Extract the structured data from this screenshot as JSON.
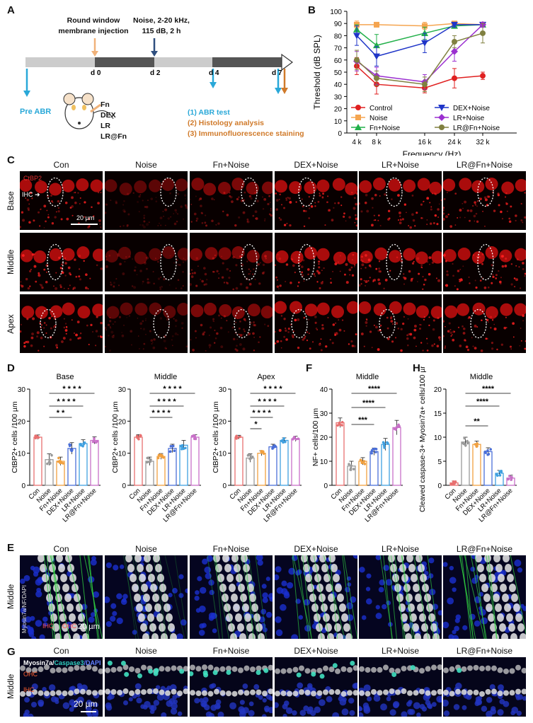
{
  "panel_labels": {
    "A": "A",
    "B": "B",
    "C": "C",
    "D": "D",
    "E": "E",
    "F": "F",
    "G": "G",
    "H": "H"
  },
  "panelA": {
    "injection": "Round window\nmembrane injection",
    "noise": "Noise, 2-20 kHz,\n115 dB, 2 h",
    "days": [
      "d 0",
      "d 2",
      "d 4",
      "d 7"
    ],
    "pre_abr": "Pre ABR",
    "treatments": [
      "Fn",
      "DEX",
      "LR",
      "LR@Fn"
    ],
    "steps": [
      "(1) ABR test",
      "(2) Histology analysis",
      "(3) Immunofluorescence staining"
    ],
    "colors": {
      "timeline_light": "#cccccc",
      "timeline_dark": "#555555",
      "abr_arrow": "#29a8d8",
      "histo_arrow": "#d07a2a",
      "injection_arrow": "#f0b27a",
      "noise_arrow": "#2f4f7f"
    }
  },
  "chart_data": [
    {
      "id": "B",
      "type": "line",
      "ylabel": "Threshold (dB SPL)",
      "xlabel": "Frequency (Hz)",
      "categories": [
        "4 k",
        "8 k",
        "16 k",
        "24 k",
        "32 k"
      ],
      "ylim": [
        0,
        100
      ],
      "yticks": [
        0,
        10,
        20,
        30,
        40,
        50,
        60,
        70,
        80,
        90,
        100
      ],
      "legend_position": "bottom",
      "series": [
        {
          "name": "Control",
          "color": "#e02020",
          "marker": "circle",
          "values": [
            55,
            40,
            37,
            45,
            47
          ],
          "err": [
            7,
            8,
            4,
            8,
            3
          ]
        },
        {
          "name": "Noise",
          "color": "#f5a550",
          "marker": "square",
          "values": [
            89,
            89,
            88,
            90,
            89
          ],
          "err": [
            3,
            2,
            3,
            1,
            2
          ]
        },
        {
          "name": "Fn+Noise",
          "color": "#22b04a",
          "marker": "triangle",
          "values": [
            85,
            72,
            82,
            88,
            89
          ],
          "err": [
            4,
            9,
            5,
            2,
            2
          ]
        },
        {
          "name": "DEX+Noise",
          "color": "#1f35c8",
          "marker": "triangle-down",
          "values": [
            80,
            63,
            74,
            89,
            89
          ],
          "err": [
            8,
            8,
            8,
            2,
            2
          ]
        },
        {
          "name": "LR+Noise",
          "color": "#9b30d0",
          "marker": "diamond",
          "values": [
            59,
            47,
            42,
            67,
            89
          ],
          "err": [
            8,
            7,
            6,
            8,
            2
          ]
        },
        {
          "name": "LR@Fn+Noise",
          "color": "#808040",
          "marker": "circle",
          "values": [
            60,
            45,
            40,
            75,
            82
          ],
          "err": [
            8,
            6,
            6,
            5,
            8
          ]
        }
      ]
    },
    {
      "id": "D-base",
      "type": "bar",
      "title": "Base",
      "ylabel": "CtBP2+ cells /100 µm",
      "categories": [
        "Con",
        "Noise",
        "Fn+Noise",
        "DEX+Noise",
        "LR+Noise",
        "LR@Fn+Noise"
      ],
      "values": [
        15,
        8,
        7.5,
        11.5,
        13,
        14
      ],
      "err": [
        0.7,
        1.8,
        1.3,
        1.8,
        1.2,
        1.1
      ],
      "ylim": [
        0,
        30
      ],
      "yticks": [
        0,
        10,
        20,
        30
      ],
      "significance": [
        "* *",
        "* * * *",
        "* * * *"
      ]
    },
    {
      "id": "D-middle",
      "type": "bar",
      "title": "Middle",
      "ylabel": "CtBP2+ cells /100 µm",
      "categories": [
        "Con",
        "Noise",
        "Fn+Noise",
        "DEX+Noise",
        "LR+Noise",
        "LR@Fn+Noise"
      ],
      "values": [
        15,
        7.5,
        9,
        11.5,
        12.5,
        15
      ],
      "err": [
        0.8,
        1.3,
        0.9,
        1.3,
        1.5,
        0.8
      ],
      "ylim": [
        0,
        30
      ],
      "yticks": [
        0,
        10,
        20,
        30
      ],
      "significance": [
        "* * * *",
        "* * * *",
        "* * * *"
      ]
    },
    {
      "id": "D-apex",
      "type": "bar",
      "title": "Apex",
      "ylabel": "CtBP2+ cells /100 µm",
      "categories": [
        "Con",
        "Noise",
        "Fn+Noise",
        "DEX+Noise",
        "LR+Noise",
        "LR@Fn+Noise"
      ],
      "values": [
        15,
        8.5,
        10,
        12,
        14,
        14.5
      ],
      "err": [
        0.6,
        1.3,
        0.8,
        0.8,
        0.8,
        0.8
      ],
      "ylim": [
        0,
        30
      ],
      "yticks": [
        0,
        10,
        20,
        30
      ],
      "significance": [
        "*",
        "* * * *",
        "* * * *",
        "* * * *"
      ]
    },
    {
      "id": "F",
      "type": "bar",
      "title": "Middle",
      "ylabel": "NF+ cells/100 µm",
      "categories": [
        "Con",
        "Noise",
        "Fn+Noise",
        "DEX+Noise",
        "LR+Noise",
        "LR@Fn+Noise"
      ],
      "values": [
        26,
        8,
        10,
        14,
        17,
        24
      ],
      "err": [
        2,
        2,
        1.5,
        1.5,
        2.5,
        3
      ],
      "ylim": [
        0,
        40
      ],
      "yticks": [
        0,
        10,
        20,
        30,
        40
      ],
      "significance": [
        "***",
        "****",
        "****"
      ]
    },
    {
      "id": "H",
      "type": "bar",
      "title": "Middle",
      "ylabel": "Cleaved caspase-3+ Myosin7a+ cells/100 µm",
      "categories": [
        "Con",
        "Noise",
        "Fn+Noise",
        "DEX+Noise",
        "LR+Noise",
        "LR@Fn+Noise"
      ],
      "values": [
        0.5,
        9,
        8.5,
        7,
        2.5,
        1.5
      ],
      "err": [
        0.4,
        1,
        0.7,
        0.8,
        0.6,
        0.6
      ],
      "ylim": [
        0,
        20
      ],
      "yticks": [
        0,
        5,
        10,
        15,
        20
      ],
      "significance": [
        "**",
        "****",
        "****"
      ]
    }
  ],
  "groups": [
    "Con",
    "Noise",
    "Fn+Noise",
    "DEX+Noise",
    "LR+Noise",
    "LR@Fn+Noise"
  ],
  "bar_colors": [
    "#e87070",
    "#9a9a9a",
    "#f0a040",
    "#4a6fd8",
    "#40a0e0",
    "#c870c8"
  ],
  "panelC": {
    "rows": [
      "Base",
      "Middle",
      "Apex"
    ],
    "stain": "CtBP2",
    "ihc": "IHC",
    "scale": "20 µm"
  },
  "panelE": {
    "row": "Middle",
    "stain": "Myosin7a/NF/DAPI",
    "ihc": "IHC",
    "ohc": "OHC",
    "scale": "20 µm"
  },
  "panelG": {
    "row": "Middle",
    "stain_a": "Myosin7a/",
    "stain_b": "Caspase3",
    "stain_c": "/DAPI",
    "ohc": "OHC",
    "ihc": "IHC",
    "scale": "20 µm"
  }
}
